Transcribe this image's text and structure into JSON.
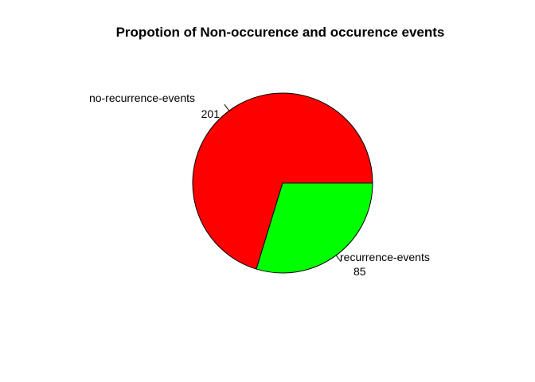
{
  "chart_data": {
    "type": "pie",
    "title": "Propotion of Non-occurence and occurence events",
    "slices": [
      {
        "label": "no-recurrence-events",
        "value": 201,
        "value_label": "201",
        "color": "#ff0000"
      },
      {
        "label": "recurrence-events",
        "value": 85,
        "value_label": "85",
        "color": "#00ff00"
      }
    ],
    "start_angle_deg": 0,
    "direction": "counterclockwise",
    "border_color": "#000000"
  }
}
